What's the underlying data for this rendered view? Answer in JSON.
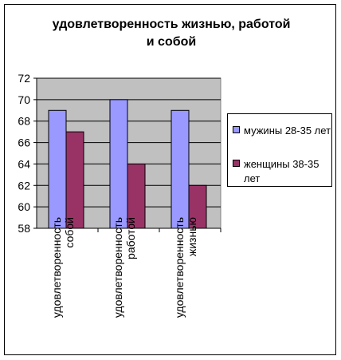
{
  "chart_data": {
    "type": "bar",
    "title": "удовлетворенность жизнью, работой\nи собой",
    "categories": [
      "удовлетворенность\nсобой",
      "удовлетворенность\nработой",
      "удовлетворенность\nжизнью"
    ],
    "series": [
      {
        "name": "мужины 28-35 лет",
        "values": [
          69,
          70,
          69
        ],
        "color": "#9999ff"
      },
      {
        "name": "женщины 38-35 лет",
        "values": [
          67,
          64,
          62
        ],
        "color": "#993366"
      }
    ],
    "ylim": [
      58,
      72
    ],
    "yticks": [
      "58",
      "60",
      "62",
      "64",
      "66",
      "68",
      "70",
      "72"
    ],
    "grid": true,
    "plot_background": "#c0c0c0",
    "legend_position": "right"
  }
}
